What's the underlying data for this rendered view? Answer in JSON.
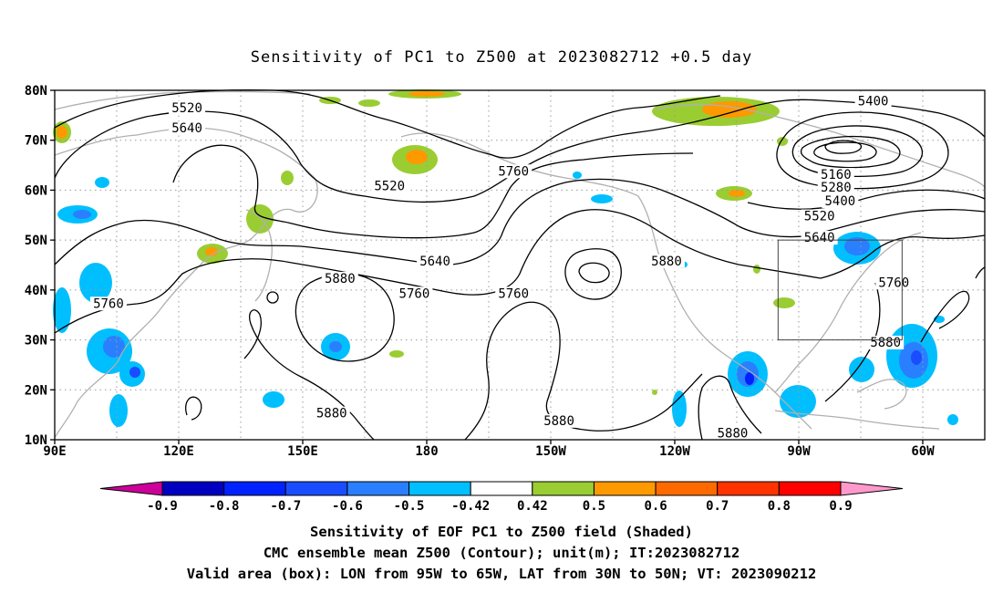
{
  "title": "Sensitivity of PC1 to Z500 at 2023082712 +0.5 day",
  "map": {
    "lat_ticks": [
      "80N",
      "70N",
      "60N",
      "50N",
      "40N",
      "30N",
      "20N",
      "10N"
    ],
    "lon_ticks": [
      "90E",
      "120E",
      "150E",
      "180",
      "150W",
      "120W",
      "90W",
      "60W"
    ]
  },
  "contour_labels": [
    {
      "text": "5520",
      "lon": 122,
      "lat": 76.2
    },
    {
      "text": "5640",
      "lon": 122,
      "lat": 72.1
    },
    {
      "text": "5520",
      "lon": 171,
      "lat": 60.5
    },
    {
      "text": "5640",
      "lon": 182,
      "lat": 45.5
    },
    {
      "text": "5760",
      "lon": 201,
      "lat": 63.5
    },
    {
      "text": "5760",
      "lon": 177,
      "lat": 39.0
    },
    {
      "text": "5760",
      "lon": 103,
      "lat": 37.0
    },
    {
      "text": "5880",
      "lon": 159,
      "lat": 42.0
    },
    {
      "text": "5760",
      "lon": 201,
      "lat": 39.0
    },
    {
      "text": "5880",
      "lon": 238,
      "lat": 45.5
    },
    {
      "text": "5400",
      "lon": 288,
      "lat": 77.5
    },
    {
      "text": "5160",
      "lon": 279,
      "lat": 62.8
    },
    {
      "text": "5280",
      "lon": 279,
      "lat": 60.3
    },
    {
      "text": "5400",
      "lon": 280,
      "lat": 57.5
    },
    {
      "text": "5520",
      "lon": 275,
      "lat": 54.5
    },
    {
      "text": "5640",
      "lon": 275,
      "lat": 50.2
    },
    {
      "text": "5760",
      "lon": 293,
      "lat": 41.2
    },
    {
      "text": "5880",
      "lon": 291,
      "lat": 29.2
    },
    {
      "text": "5880",
      "lon": 157,
      "lat": 15.0
    },
    {
      "text": "5880",
      "lon": 212,
      "lat": 13.5
    },
    {
      "text": "5880",
      "lon": 254,
      "lat": 11.0
    }
  ],
  "valid_box": {
    "lon_min": -95,
    "lon_max": -65,
    "lat_min": 30,
    "lat_max": 50
  },
  "colorbar": {
    "labels": [
      "-0.9",
      "-0.8",
      "-0.7",
      "-0.6",
      "-0.5",
      "-0.42",
      "0.42",
      "0.5",
      "0.6",
      "0.7",
      "0.8",
      "0.9"
    ],
    "colors": [
      "#0000c0",
      "#0022ff",
      "#1a4dff",
      "#2a7fff",
      "#00bfff",
      "#ffffff",
      "#9acd32",
      "#ff9900",
      "#ff6a00",
      "#ff3300",
      "#ff0000"
    ],
    "under_color": "#cc0099",
    "over_color": "#ff99cc"
  },
  "captions": [
    "Sensitivity of EOF PC1 to Z500 field (Shaded)",
    "CMC ensemble mean Z500 (Contour); unit(m); IT:2023082712",
    "Valid area (box): LON from 95W to 65W, LAT from 30N to 50N; VT: 2023090212"
  ]
}
